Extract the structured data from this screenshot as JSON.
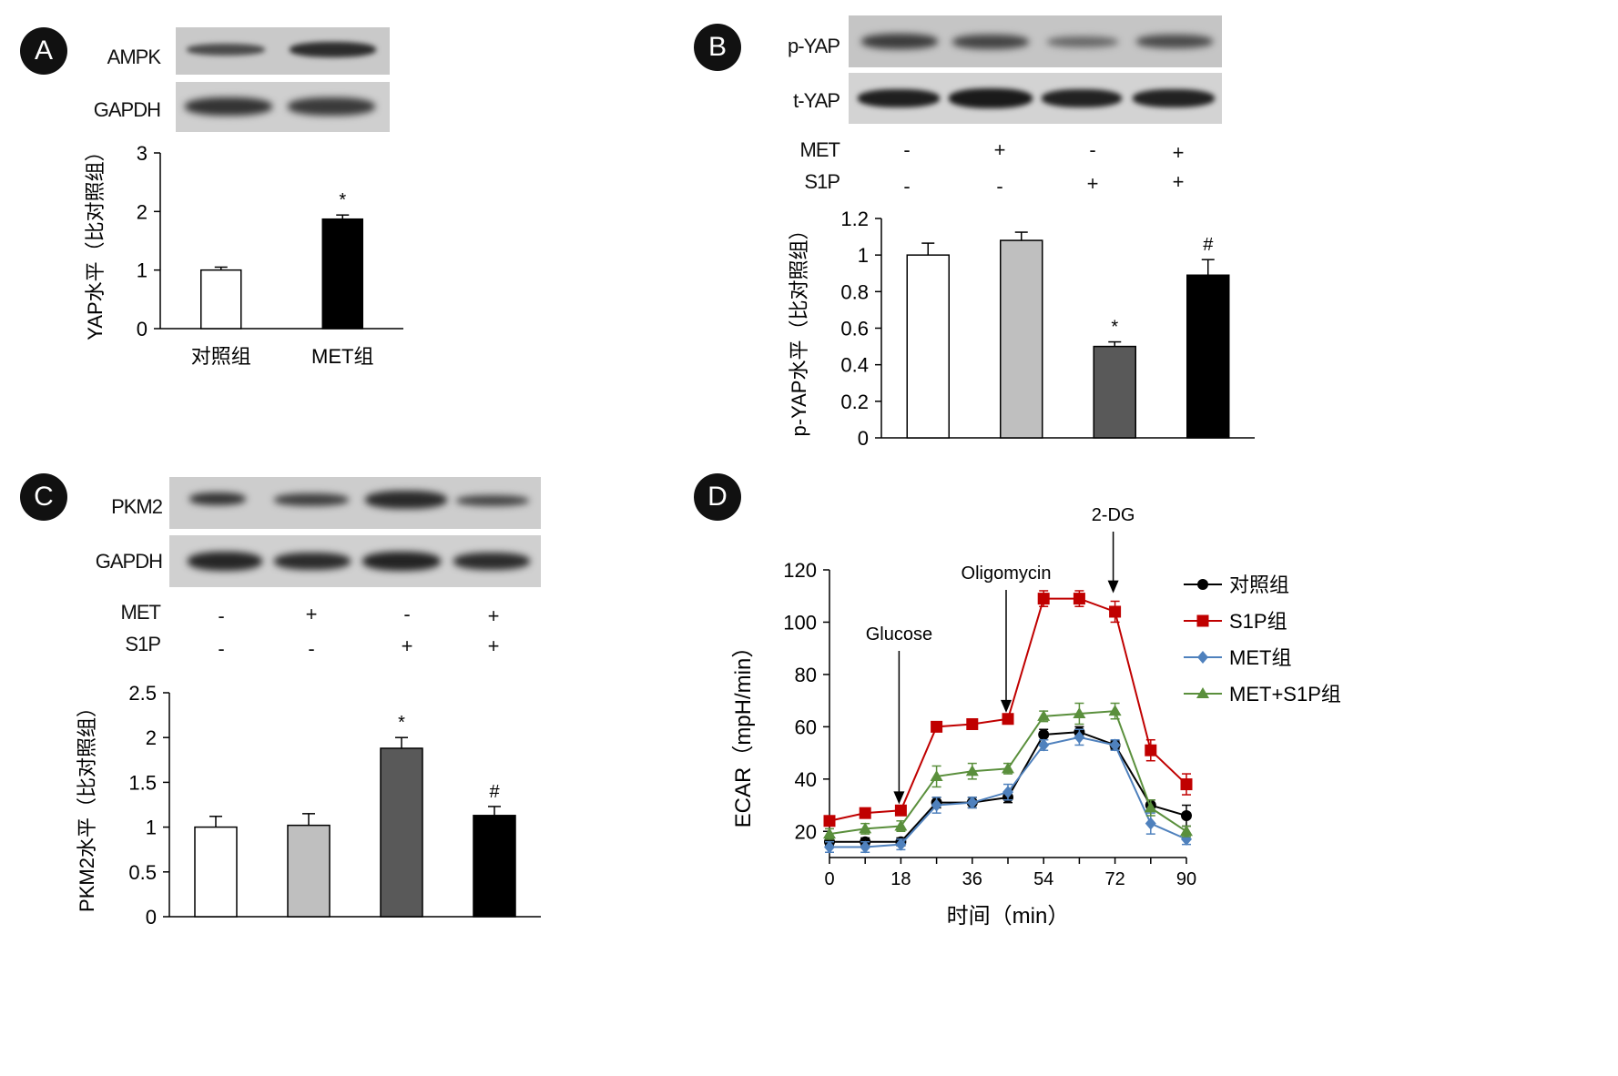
{
  "panels": {
    "A": {
      "badge": "A",
      "blots": [
        {
          "label": "AMPK"
        },
        {
          "label": "GAPDH"
        }
      ],
      "chart_data": {
        "type": "bar",
        "ylabel": "YAP水平（比对照组）",
        "categories": [
          "对照组",
          "MET组"
        ],
        "values": [
          1.0,
          1.87
        ],
        "errors": [
          0.05,
          0.07
        ],
        "annotations": [
          "",
          "*"
        ],
        "fills": [
          "#ffffff",
          "#000000"
        ],
        "ylim": [
          0,
          3
        ],
        "yticks": [
          "0",
          "1",
          "2",
          "3"
        ]
      }
    },
    "B": {
      "badge": "B",
      "blots": [
        {
          "label": "p-YAP"
        },
        {
          "label": "t-YAP"
        }
      ],
      "conditions": [
        {
          "label": "MET",
          "signs": [
            "-",
            "+",
            "-",
            "+"
          ]
        },
        {
          "label": "S1P",
          "signs": [
            "-",
            "-",
            "+",
            "+"
          ]
        }
      ],
      "chart_data": {
        "type": "bar",
        "ylabel": "p-YAP水平（比对照组）",
        "categories": [
          "",
          "",
          "",
          ""
        ],
        "values": [
          1.0,
          1.08,
          0.5,
          0.89
        ],
        "errors": [
          0.065,
          0.045,
          0.025,
          0.085
        ],
        "annotations": [
          "",
          "",
          "*",
          "#"
        ],
        "fills": [
          "#ffffff",
          "#bfbfbf",
          "#595959",
          "#000000"
        ],
        "ylim": [
          0,
          1.2
        ],
        "yticks": [
          "0",
          "0.2",
          "0.4",
          "0.6",
          "0.8",
          "1",
          "1.2"
        ]
      }
    },
    "C": {
      "badge": "C",
      "blots": [
        {
          "label": "PKM2"
        },
        {
          "label": "GAPDH"
        }
      ],
      "conditions": [
        {
          "label": "MET",
          "signs": [
            "-",
            "+",
            "-",
            "+"
          ]
        },
        {
          "label": "S1P",
          "signs": [
            "-",
            "-",
            "+",
            "+"
          ]
        }
      ],
      "chart_data": {
        "type": "bar",
        "ylabel": "PKM2水平（比对照组）",
        "categories": [
          "",
          "",
          "",
          ""
        ],
        "values": [
          1.0,
          1.02,
          1.88,
          1.13
        ],
        "errors": [
          0.12,
          0.13,
          0.12,
          0.1
        ],
        "annotations": [
          "",
          "",
          "*",
          "#"
        ],
        "fills": [
          "#ffffff",
          "#bfbfbf",
          "#595959",
          "#000000"
        ],
        "ylim": [
          0,
          2.5
        ],
        "yticks": [
          "0",
          "0.5",
          "1",
          "1.5",
          "2",
          "2.5"
        ]
      }
    },
    "D": {
      "badge": "D",
      "chart_data": {
        "type": "line",
        "xlabel": "时间（min）",
        "ylabel": "ECAR（mpH/min）",
        "x": [
          0,
          9,
          18,
          27,
          36,
          45,
          54,
          63,
          72,
          81,
          90
        ],
        "xticks": [
          "0",
          "18",
          "36",
          "54",
          "72",
          "90"
        ],
        "xlim": [
          0,
          90
        ],
        "ylim": [
          10,
          120
        ],
        "yticks": [
          "20",
          "40",
          "60",
          "80",
          "100",
          "120"
        ],
        "series": [
          {
            "name": "对照组",
            "color": "#000000",
            "marker": "circle",
            "values": [
              16,
              16,
              16,
              31,
              31,
              33,
              57,
              58,
              53,
              30,
              26
            ],
            "errors": [
              1.5,
              1.5,
              1.5,
              2,
              2,
              2,
              2,
              2,
              1.5,
              2,
              4
            ]
          },
          {
            "name": "S1P组",
            "color": "#c00000",
            "marker": "square",
            "values": [
              24,
              27,
              28,
              60,
              61,
              63,
              109,
              109,
              104,
              51,
              38
            ],
            "errors": [
              1.5,
              1.5,
              1.5,
              1.5,
              1.5,
              1.5,
              3,
              3,
              4,
              4,
              4
            ]
          },
          {
            "name": "MET组",
            "color": "#4f81bd",
            "marker": "diamond",
            "values": [
              14,
              14,
              15,
              30,
              31,
              35,
              53,
              56,
              53,
              23,
              17
            ],
            "errors": [
              2,
              2,
              2,
              3,
              2,
              3,
              2,
              3,
              2,
              4,
              2
            ]
          },
          {
            "name": "MET+S1P组",
            "color": "#5a8f3c",
            "marker": "triangle",
            "values": [
              19,
              21,
              22,
              41,
              43,
              44,
              64,
              65,
              66,
              29,
              20
            ],
            "errors": [
              2,
              2,
              2,
              4,
              3,
              2,
              2,
              4,
              3,
              3,
              2
            ]
          }
        ],
        "annotations": [
          {
            "text": "Glucose",
            "x": 18
          },
          {
            "text": "Oligomycin",
            "x": 45
          },
          {
            "text": "2-DG",
            "x": 72
          }
        ]
      }
    }
  }
}
